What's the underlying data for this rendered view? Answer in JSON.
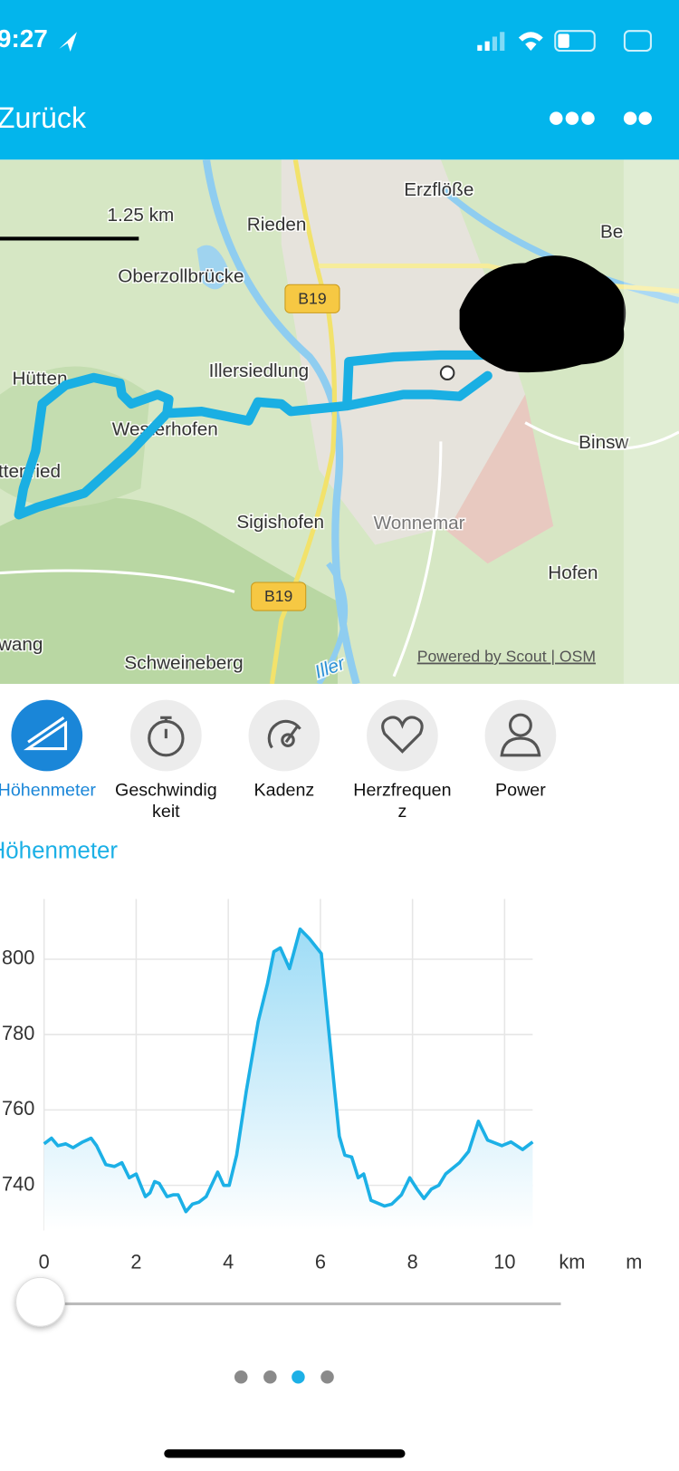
{
  "status_bar": {
    "time": "9:27"
  },
  "nav": {
    "back": "Zurück"
  },
  "map": {
    "scale_label": "1.25 km",
    "labels": [
      "Erzflöße",
      "Rieden",
      "Oberzollbrücke",
      "B19",
      "Hütten",
      "Illersiedlung",
      "Westerhofen",
      "ttenried",
      "Sigishofen",
      "Wonnemar",
      "B19",
      "Hofen",
      "Binsw",
      "Schweineberg",
      "wang",
      "Iller",
      "Be"
    ],
    "attribution": "Powered by Scout | OSM"
  },
  "tabs": [
    {
      "lines": [
        "Höhenmeter"
      ]
    },
    {
      "lines": [
        "Geschwindig",
        "keit"
      ]
    },
    {
      "lines": [
        "Kadenz"
      ]
    },
    {
      "lines": [
        "Herzfrequen",
        "z"
      ]
    },
    {
      "lines": [
        "Power"
      ]
    }
  ],
  "section_title": "Höhenmeter",
  "elevation_chart": {
    "type": "line",
    "color": "#1cb0e6",
    "grid": true,
    "x": [
      0,
      0.16,
      0.3,
      0.47,
      0.63,
      0.84,
      1.02,
      1.14,
      1.34,
      1.53,
      1.69,
      1.85,
      2.0,
      2.1,
      2.2,
      2.3,
      2.4,
      2.5,
      2.67,
      2.81,
      2.91,
      3.08,
      3.22,
      3.36,
      3.52,
      3.77,
      3.9,
      4.02,
      4.18,
      4.39,
      4.65,
      4.85,
      4.99,
      5.13,
      5.33,
      5.56,
      5.76,
      6.02,
      6.17,
      6.31,
      6.41,
      6.53,
      6.68,
      6.82,
      6.94,
      7.1,
      7.39,
      7.55,
      7.76,
      7.94,
      8.1,
      8.25,
      8.41,
      8.57,
      8.72,
      9.02,
      9.22,
      9.43,
      9.63,
      9.94,
      10.14,
      10.39,
      10.61
    ],
    "values": [
      751,
      752.5,
      750.5,
      751,
      750,
      751.5,
      752.5,
      750.5,
      745.5,
      745,
      746,
      742,
      743,
      740,
      737,
      738,
      741,
      740.5,
      737,
      737.5,
      737.5,
      733,
      735,
      735.5,
      737,
      743.5,
      740,
      740,
      748,
      765,
      783.5,
      793.5,
      802,
      803,
      797.5,
      808,
      805.5,
      801.5,
      782.5,
      765,
      753,
      748,
      747.5,
      742,
      743,
      736,
      734.5,
      735,
      737.5,
      742,
      739,
      736.5,
      739,
      740,
      743,
      746,
      749,
      757,
      752,
      750.5,
      751.5,
      749.5,
      751.5
    ],
    "xlim": [
      0,
      10.61
    ],
    "ylim": [
      728,
      816
    ],
    "xticks": [
      0,
      2,
      4,
      6,
      8,
      10
    ],
    "yticks": [
      740,
      760,
      780,
      800
    ],
    "x_unit": "km",
    "y_unit": "m"
  }
}
